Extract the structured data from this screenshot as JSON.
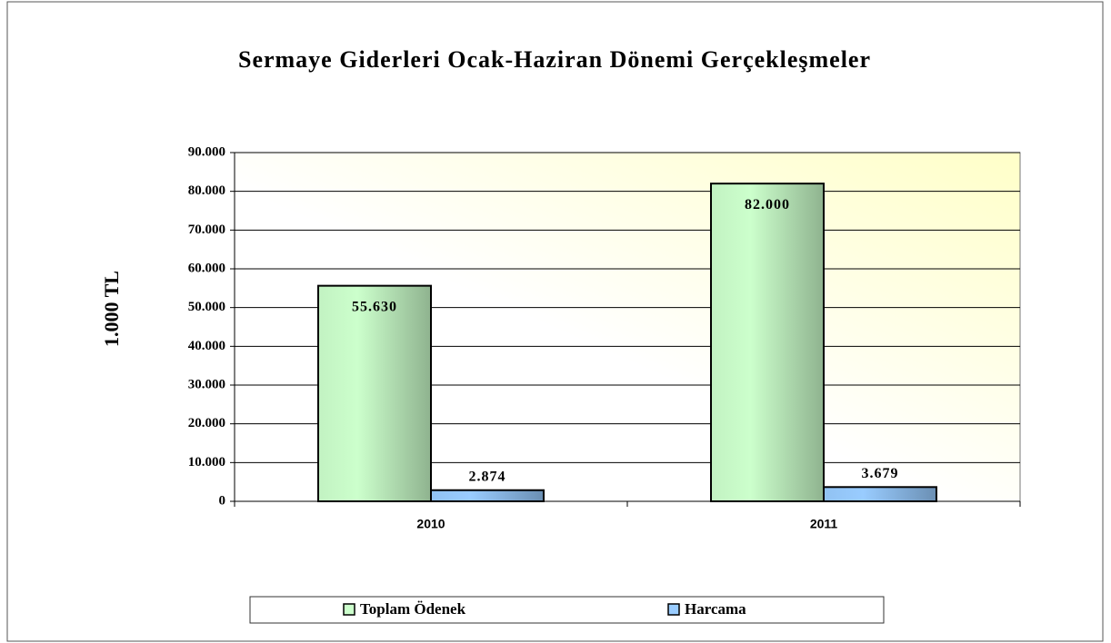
{
  "chart_data": {
    "type": "bar",
    "title": "Sermaye Giderleri Ocak-Haziran Dönemi Gerçekleşmeler",
    "ylabel": "1.000 TL",
    "categories": [
      "2010",
      "2011"
    ],
    "series": [
      {
        "name": "Toplam Ödenek",
        "color": "#ccffcc",
        "values": [
          55630,
          82000
        ],
        "value_labels": [
          "55.630",
          "82.000"
        ]
      },
      {
        "name": "Harcama",
        "color": "#99ccff",
        "values": [
          2874,
          3679
        ],
        "value_labels": [
          "2.874",
          "3.679"
        ]
      }
    ],
    "ylim": [
      0,
      90000
    ],
    "yticks": [
      0,
      {
        "value": 10000,
        "label": "10.000"
      },
      {
        "value": 20000,
        "label": "20.000"
      },
      {
        "value": 30000,
        "label": "30.000"
      },
      {
        "value": 40000,
        "label": "40.000"
      },
      {
        "value": 50000,
        "label": "50.000"
      },
      {
        "value": 60000,
        "label": "60.000"
      },
      {
        "value": 70000,
        "label": "70.000"
      },
      {
        "value": 80000,
        "label": "80.000"
      },
      {
        "value": 90000,
        "label": "90.000"
      }
    ],
    "grid": true,
    "legend": "bottom"
  }
}
